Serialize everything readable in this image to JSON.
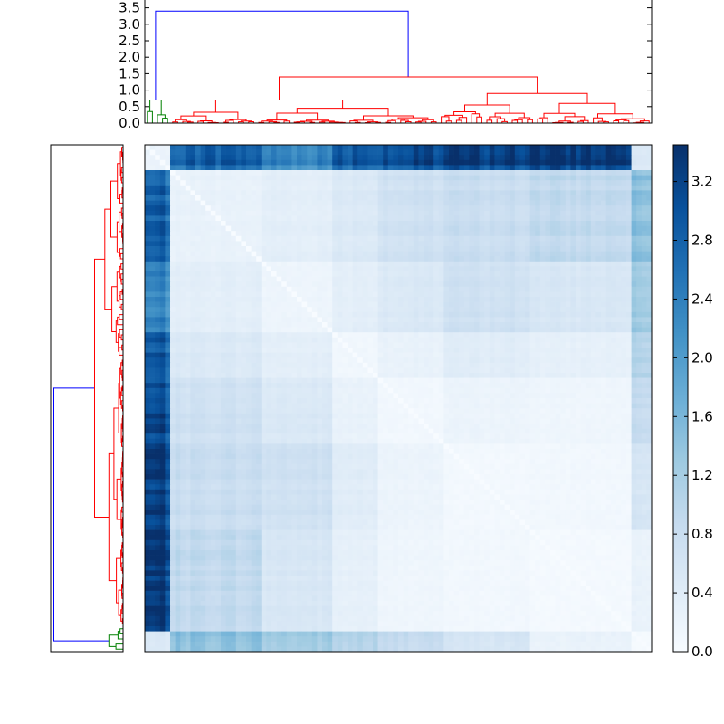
{
  "chart_data": [
    {
      "type": "dendrogram",
      "orientation": "top",
      "ylim": [
        0,
        3.5
      ],
      "yticks": [
        "0.0",
        "0.5",
        "1.0",
        "1.5",
        "2.0",
        "2.5",
        "3.0",
        "3.5"
      ],
      "link_colors": {
        "root": "#0000ff",
        "main": "#ff0000",
        "minor": "#008000"
      },
      "root_height": 3.4,
      "cluster_heights": {
        "red_main": 1.4,
        "red_mid": 0.7,
        "red_right": 0.9,
        "green": 0.7
      }
    },
    {
      "type": "dendrogram",
      "orientation": "left",
      "link_colors": {
        "root": "#0000ff",
        "main": "#ff0000",
        "minor": "#008000"
      }
    },
    {
      "type": "heatmap",
      "colormap": "Blues",
      "vmin": 0.0,
      "vmax": 3.45,
      "colorbar_ticks": [
        "0.0",
        "0.4",
        "0.8",
        "1.2",
        "1.6",
        "2.0",
        "2.4",
        "2.8",
        "3.2"
      ],
      "block_boundaries": [
        0,
        0.05,
        0.23,
        0.375,
        0.46,
        0.59,
        0.765,
        0.965,
        1.0
      ],
      "block_levels": [
        [
          0.2,
          2.8,
          2.3,
          2.9,
          3.0,
          3.2,
          3.3,
          0.5
        ],
        [
          2.8,
          0.25,
          0.35,
          0.5,
          0.7,
          0.8,
          0.9,
          1.5
        ],
        [
          2.3,
          0.35,
          0.18,
          0.35,
          0.5,
          0.7,
          0.55,
          1.3
        ],
        [
          2.9,
          0.5,
          0.35,
          0.12,
          0.25,
          0.4,
          0.3,
          1.1
        ],
        [
          3.0,
          0.7,
          0.5,
          0.25,
          0.1,
          0.2,
          0.15,
          0.9
        ],
        [
          3.2,
          0.8,
          0.7,
          0.4,
          0.2,
          0.08,
          0.1,
          0.6
        ],
        [
          3.3,
          0.9,
          0.55,
          0.3,
          0.15,
          0.1,
          0.06,
          0.25
        ],
        [
          0.5,
          1.5,
          1.3,
          1.1,
          0.9,
          0.6,
          0.25,
          0.04
        ]
      ]
    }
  ]
}
